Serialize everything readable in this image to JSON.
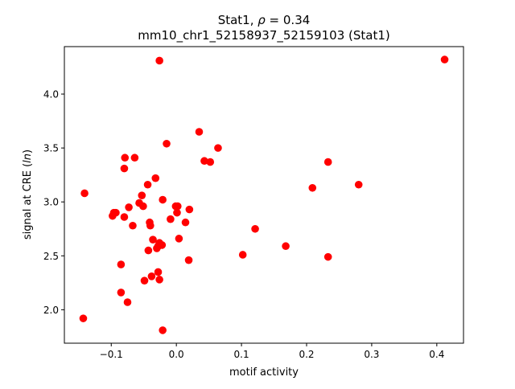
{
  "chart_data": {
    "type": "scatter",
    "title_line1_prefix": "Stat1, ",
    "title_rho": "ρ",
    "title_line1_suffix": " = 0.34",
    "title_line2": "mm10_chr1_52158937_52159103 (Stat1)",
    "xlabel": "motif activity",
    "ylabel_prefix": "signal at CRE (",
    "ylabel_italic": "ln",
    "ylabel_suffix": ")",
    "xlim": [
      -0.172,
      0.441
    ],
    "ylim": [
      1.69,
      4.44
    ],
    "xticks": [
      -0.1,
      0.0,
      0.1,
      0.2,
      0.3,
      0.4
    ],
    "xtick_labels": [
      "−0.1",
      "0.0",
      "0.1",
      "0.2",
      "0.3",
      "0.4"
    ],
    "yticks": [
      2.0,
      2.5,
      3.0,
      3.5,
      4.0
    ],
    "ytick_labels": [
      "2.0",
      "2.5",
      "3.0",
      "3.5",
      "4.0"
    ],
    "grid": false,
    "marker_color": "#ff0000",
    "points": [
      [
        -0.026,
        4.31
      ],
      [
        0.412,
        4.32
      ],
      [
        0.035,
        3.65
      ],
      [
        -0.015,
        3.54
      ],
      [
        0.064,
        3.5
      ],
      [
        -0.079,
        3.41
      ],
      [
        -0.064,
        3.41
      ],
      [
        0.043,
        3.38
      ],
      [
        0.052,
        3.37
      ],
      [
        0.233,
        3.37
      ],
      [
        -0.08,
        3.31
      ],
      [
        -0.032,
        3.22
      ],
      [
        -0.044,
        3.16
      ],
      [
        0.209,
        3.13
      ],
      [
        0.28,
        3.16
      ],
      [
        -0.141,
        3.08
      ],
      [
        -0.053,
        3.06
      ],
      [
        -0.021,
        3.02
      ],
      [
        -0.057,
        2.99
      ],
      [
        -0.051,
        2.96
      ],
      [
        -0.073,
        2.95
      ],
      [
        -0.001,
        2.96
      ],
      [
        0.002,
        2.96
      ],
      [
        0.02,
        2.93
      ],
      [
        0.001,
        2.9
      ],
      [
        -0.096,
        2.9
      ],
      [
        -0.093,
        2.9
      ],
      [
        -0.098,
        2.87
      ],
      [
        -0.009,
        2.84
      ],
      [
        -0.08,
        2.86
      ],
      [
        0.014,
        2.81
      ],
      [
        -0.041,
        2.81
      ],
      [
        -0.04,
        2.78
      ],
      [
        -0.067,
        2.78
      ],
      [
        0.121,
        2.75
      ],
      [
        -0.036,
        2.65
      ],
      [
        0.004,
        2.66
      ],
      [
        -0.026,
        2.62
      ],
      [
        -0.022,
        2.6
      ],
      [
        -0.028,
        2.59
      ],
      [
        0.168,
        2.59
      ],
      [
        -0.043,
        2.55
      ],
      [
        -0.03,
        2.57
      ],
      [
        0.102,
        2.51
      ],
      [
        0.233,
        2.49
      ],
      [
        0.019,
        2.46
      ],
      [
        -0.085,
        2.42
      ],
      [
        -0.028,
        2.35
      ],
      [
        -0.038,
        2.31
      ],
      [
        -0.049,
        2.27
      ],
      [
        -0.026,
        2.28
      ],
      [
        -0.085,
        2.16
      ],
      [
        -0.075,
        2.07
      ],
      [
        -0.143,
        1.92
      ],
      [
        -0.021,
        1.81
      ]
    ]
  }
}
